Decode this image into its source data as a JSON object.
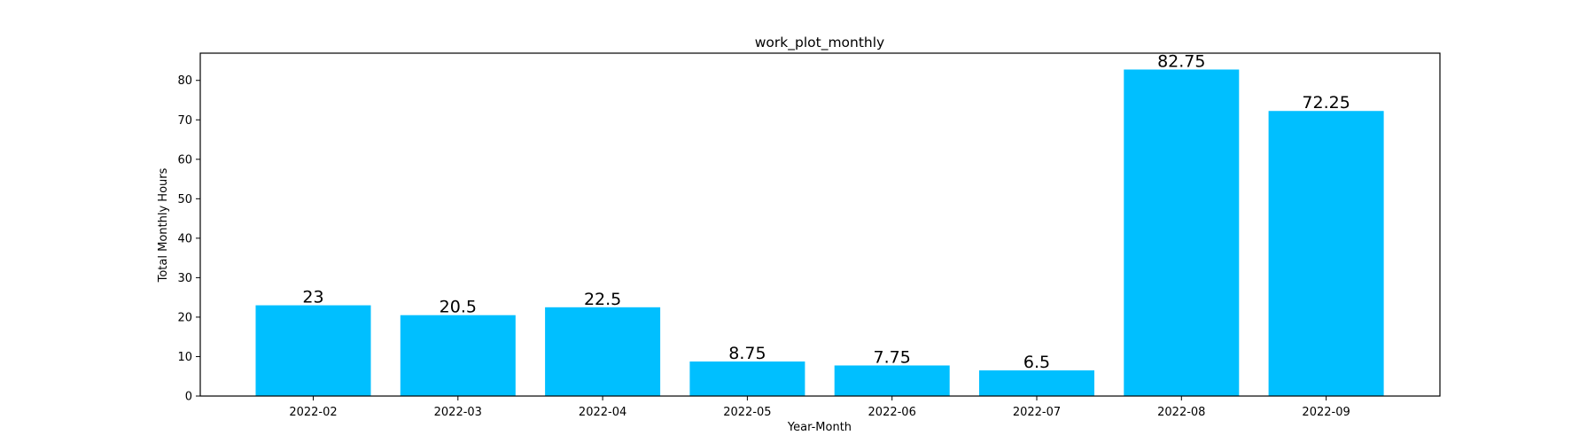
{
  "chart_data": {
    "type": "bar",
    "title": "work_plot_monthly",
    "xlabel": "Year-Month",
    "ylabel": "Total Monthly Hours",
    "categories": [
      "2022-02",
      "2022-03",
      "2022-04",
      "2022-05",
      "2022-06",
      "2022-07",
      "2022-08",
      "2022-09"
    ],
    "values": [
      23,
      20.5,
      22.5,
      8.75,
      7.75,
      6.5,
      82.75,
      72.25
    ],
    "value_labels": [
      "23",
      "20.5",
      "22.5",
      "8.75",
      "7.75",
      "6.5",
      "82.75",
      "72.25"
    ],
    "yticks": [
      0,
      10,
      20,
      30,
      40,
      50,
      60,
      70,
      80
    ],
    "ylim": [
      0,
      86.9
    ],
    "bar_color": "#00bfff",
    "grid": false,
    "legend": "none"
  }
}
